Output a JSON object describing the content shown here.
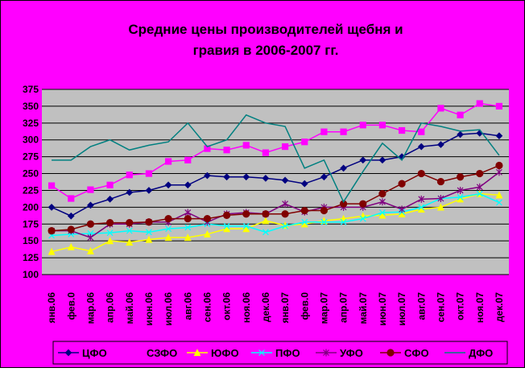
{
  "chart_data": {
    "type": "line",
    "title_lines": [
      "Средние цены производителей щебня и",
      "гравия в 2006-2007 гг."
    ],
    "categories": [
      "янв.06",
      "фев.0",
      "мар.06",
      "апр.06",
      "май.06",
      "июн.06",
      "июл.06",
      "авг.06",
      "сен.06",
      "окт.06",
      "ноя.06",
      "дек.06",
      "янв.07",
      "фев.0",
      "мар.07",
      "апр.07",
      "май.07",
      "июн.07",
      "июл.07",
      "авг.07",
      "сен.07",
      "окт.07",
      "ноя.07",
      "дек.07"
    ],
    "ylim": [
      100,
      375
    ],
    "yticks": [
      100,
      125,
      150,
      175,
      200,
      225,
      250,
      275,
      300,
      325,
      350,
      375
    ],
    "grid": true,
    "series": [
      {
        "name": "ЦФО",
        "color": "#000080",
        "marker": "diamond",
        "values": [
          200,
          187,
          203,
          212,
          222,
          225,
          233,
          233,
          247,
          245,
          245,
          243,
          240,
          235,
          245,
          258,
          270,
          270,
          275,
          290,
          293,
          308,
          310,
          306
        ]
      },
      {
        "name": "СЗФО",
        "color": "#ff00ff",
        "marker": "square",
        "values": [
          232,
          213,
          226,
          233,
          248,
          250,
          268,
          270,
          287,
          285,
          292,
          281,
          290,
          297,
          312,
          312,
          322,
          322,
          314,
          312,
          347,
          337,
          354,
          350
        ]
      },
      {
        "name": "ЮФО",
        "color": "#ffff00",
        "marker": "triangle",
        "values": [
          134,
          141,
          135,
          150,
          148,
          152,
          155,
          155,
          160,
          168,
          168,
          180,
          173,
          175,
          180,
          183,
          187,
          188,
          190,
          197,
          200,
          212,
          220,
          218
        ]
      },
      {
        "name": "ПФО",
        "color": "#00ffff",
        "marker": "x",
        "values": [
          158,
          160,
          161,
          162,
          165,
          163,
          168,
          170,
          175,
          172,
          172,
          163,
          172,
          178,
          178,
          178,
          183,
          192,
          193,
          200,
          213,
          215,
          220,
          207
        ]
      },
      {
        "name": "УФО",
        "color": "#800080",
        "marker": "star",
        "values": [
          165,
          165,
          155,
          175,
          175,
          178,
          178,
          192,
          178,
          190,
          192,
          190,
          205,
          193,
          200,
          200,
          200,
          208,
          197,
          212,
          213,
          225,
          230,
          252
        ]
      },
      {
        "name": "СФО",
        "color": "#800000",
        "marker": "circle",
        "values": [
          165,
          167,
          175,
          177,
          177,
          178,
          183,
          183,
          183,
          188,
          190,
          190,
          190,
          195,
          195,
          205,
          205,
          220,
          235,
          250,
          238,
          245,
          250,
          262
        ]
      },
      {
        "name": "ДФО",
        "color": "#008080",
        "marker": "none",
        "values": [
          270,
          270,
          290,
          300,
          285,
          292,
          297,
          325,
          290,
          300,
          337,
          325,
          320,
          258,
          270,
          208,
          253,
          295,
          270,
          325,
          320,
          313,
          315,
          277
        ]
      }
    ]
  }
}
